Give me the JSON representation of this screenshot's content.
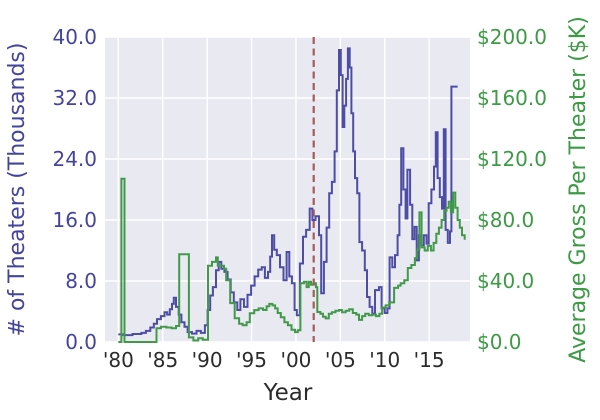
{
  "chart_data": {
    "type": "line",
    "subtype": "step-post-dual-axis",
    "title": "",
    "xlabel": "Year",
    "ylabel_left": "# of Theaters (Thousands)",
    "ylabel_right": "Average Gross Per Theater ($K)",
    "xlim": [
      1978.5,
      2019.6
    ],
    "ylim_left": [
      0,
      40
    ],
    "ylim_right": [
      0,
      200
    ],
    "grid": true,
    "legend": "none",
    "plot_bg": "#e9e9f2",
    "grid_color": "#ffffff",
    "x_ticks": [
      1980,
      1985,
      1990,
      1995,
      2000,
      2005,
      2010,
      2015
    ],
    "x_tick_labels": [
      "'80",
      "'85",
      "'90",
      "'95",
      "'00",
      "'05",
      "'10",
      "'15"
    ],
    "y_ticks_left": [
      0,
      8,
      16,
      24,
      32,
      40
    ],
    "y_tick_labels_left": [
      "0.0",
      "8.0",
      "16.0",
      "24.0",
      "32.0",
      "40.0"
    ],
    "y_ticks_right": [
      0,
      40,
      80,
      120,
      160,
      200
    ],
    "y_tick_labels_right": [
      "$0.0",
      "$40.0",
      "$80.0",
      "$120.0",
      "$160.0",
      "$200.0"
    ],
    "axis_text_color_left": "#44449f",
    "axis_text_color_right": "#3d9a45",
    "axis_text_color_x": "#2b2b2b",
    "event_line": {
      "x": 2002.0,
      "color": "#a65a5a",
      "style": "dashed"
    },
    "series": [
      {
        "name": "# of Theaters (Thousands)",
        "axis": "left",
        "color": "#4d4da5",
        "step": true,
        "points": [
          [
            1980.0,
            1.0
          ],
          [
            1980.6,
            0.9
          ],
          [
            1981.6,
            1.05
          ],
          [
            1982.6,
            1.2
          ],
          [
            1983.1,
            1.45
          ],
          [
            1983.6,
            1.9
          ],
          [
            1984.0,
            2.4
          ],
          [
            1984.35,
            3.0
          ],
          [
            1984.8,
            3.4
          ],
          [
            1985.2,
            3.9
          ],
          [
            1985.5,
            3.6
          ],
          [
            1985.8,
            4.3
          ],
          [
            1986.05,
            5.0
          ],
          [
            1986.25,
            5.8
          ],
          [
            1986.5,
            4.6
          ],
          [
            1986.8,
            3.6
          ],
          [
            1987.1,
            2.6
          ],
          [
            1987.45,
            2.0
          ],
          [
            1987.8,
            1.3
          ],
          [
            1988.3,
            1.1
          ],
          [
            1988.8,
            1.45
          ],
          [
            1989.3,
            1.2
          ],
          [
            1989.75,
            2.2
          ],
          [
            1990.05,
            4.2
          ],
          [
            1990.35,
            6.1
          ],
          [
            1990.65,
            7.2
          ],
          [
            1991.0,
            9.4
          ],
          [
            1991.3,
            10.5
          ],
          [
            1991.6,
            9.6
          ],
          [
            1991.95,
            9.2
          ],
          [
            1992.3,
            8.2
          ],
          [
            1992.65,
            6.5
          ],
          [
            1993.0,
            5.2
          ],
          [
            1993.4,
            4.2
          ],
          [
            1993.75,
            5.6
          ],
          [
            1994.15,
            4.6
          ],
          [
            1994.55,
            6.2
          ],
          [
            1994.95,
            7.4
          ],
          [
            1995.35,
            8.6
          ],
          [
            1995.75,
            9.5
          ],
          [
            1996.15,
            9.8
          ],
          [
            1996.5,
            8.4
          ],
          [
            1996.85,
            9.2
          ],
          [
            1997.1,
            11.2
          ],
          [
            1997.3,
            14.0
          ],
          [
            1997.55,
            12.1
          ],
          [
            1997.85,
            11.4
          ],
          [
            1998.2,
            9.8
          ],
          [
            1998.6,
            8.1
          ],
          [
            1998.95,
            11.8
          ],
          [
            1999.25,
            8.6
          ],
          [
            1999.55,
            7.7
          ],
          [
            1999.85,
            4.2
          ],
          [
            2000.1,
            3.5
          ],
          [
            2000.45,
            10.3
          ],
          [
            2000.8,
            13.8
          ],
          [
            2001.15,
            14.7
          ],
          [
            2001.55,
            17.5
          ],
          [
            2001.85,
            16.0
          ],
          [
            2002.2,
            16.5
          ],
          [
            2002.6,
            14.0
          ],
          [
            2002.85,
            6.4
          ],
          [
            2003.15,
            10.5
          ],
          [
            2003.45,
            15.0
          ],
          [
            2003.75,
            19.5
          ],
          [
            2004.05,
            21.0
          ],
          [
            2004.35,
            25.0
          ],
          [
            2004.6,
            33.0
          ],
          [
            2004.85,
            38.3
          ],
          [
            2005.05,
            35.0
          ],
          [
            2005.25,
            28.2
          ],
          [
            2005.45,
            31.0
          ],
          [
            2005.65,
            34.5
          ],
          [
            2005.85,
            38.5
          ],
          [
            2006.05,
            36.0
          ],
          [
            2006.25,
            30.0
          ],
          [
            2006.45,
            25.0
          ],
          [
            2006.65,
            21.5
          ],
          [
            2006.9,
            19.5
          ],
          [
            2007.15,
            13.1
          ],
          [
            2007.45,
            12.0
          ],
          [
            2007.75,
            9.4
          ],
          [
            2008.0,
            5.9
          ],
          [
            2008.3,
            4.6
          ],
          [
            2008.6,
            3.7
          ],
          [
            2008.9,
            6.8
          ],
          [
            2009.35,
            7.2
          ],
          [
            2009.65,
            4.4
          ],
          [
            2010.0,
            3.8
          ],
          [
            2010.3,
            4.4
          ],
          [
            2010.55,
            11.1
          ],
          [
            2010.85,
            9.8
          ],
          [
            2011.15,
            11.4
          ],
          [
            2011.45,
            14.0
          ],
          [
            2011.65,
            18.0
          ],
          [
            2011.85,
            25.4
          ],
          [
            2012.1,
            20.0
          ],
          [
            2012.35,
            16.2
          ],
          [
            2012.55,
            22.6
          ],
          [
            2012.85,
            18.0
          ],
          [
            2013.1,
            13.5
          ],
          [
            2013.35,
            15.1
          ],
          [
            2013.6,
            10.7
          ],
          [
            2013.85,
            14.0
          ],
          [
            2014.1,
            12.7
          ],
          [
            2014.4,
            14.0
          ],
          [
            2014.7,
            12.9
          ],
          [
            2014.95,
            18.2
          ],
          [
            2015.25,
            20.0
          ],
          [
            2015.55,
            23.0
          ],
          [
            2015.75,
            27.5
          ],
          [
            2015.95,
            21.5
          ],
          [
            2016.2,
            19.0
          ],
          [
            2016.45,
            17.5
          ],
          [
            2016.65,
            27.9
          ],
          [
            2016.85,
            14.7
          ],
          [
            2017.1,
            13.0
          ],
          [
            2017.35,
            14.5
          ],
          [
            2017.5,
            33.5
          ],
          [
            2018.2,
            33.5
          ]
        ]
      },
      {
        "name": "Average Gross Per Theater ($K)",
        "axis": "right",
        "color": "#42994a",
        "step": true,
        "points": [
          [
            1980.0,
            0
          ],
          [
            1980.35,
            107
          ],
          [
            1980.7,
            0
          ],
          [
            1984.3,
            9
          ],
          [
            1984.8,
            10
          ],
          [
            1985.4,
            9.5
          ],
          [
            1986.0,
            9
          ],
          [
            1986.5,
            10.5
          ],
          [
            1986.85,
            57.5
          ],
          [
            1987.95,
            3
          ],
          [
            1988.45,
            1
          ],
          [
            1989.0,
            2.5
          ],
          [
            1989.5,
            1.5
          ],
          [
            1990.1,
            50
          ],
          [
            1990.55,
            52.5
          ],
          [
            1991.0,
            55.5
          ],
          [
            1991.2,
            50
          ],
          [
            1991.9,
            48
          ],
          [
            1992.15,
            40.5
          ],
          [
            1992.6,
            25.5
          ],
          [
            1993.1,
            15.6
          ],
          [
            1993.6,
            12
          ],
          [
            1994.0,
            11
          ],
          [
            1994.45,
            13
          ],
          [
            1994.8,
            18.9
          ],
          [
            1995.3,
            20.9
          ],
          [
            1995.8,
            22
          ],
          [
            1996.3,
            21
          ],
          [
            1996.7,
            23.5
          ],
          [
            1997.0,
            25
          ],
          [
            1997.35,
            24
          ],
          [
            1997.65,
            22
          ],
          [
            1997.95,
            19
          ],
          [
            1998.3,
            16.2
          ],
          [
            1998.7,
            13
          ],
          [
            1999.1,
            11
          ],
          [
            1999.5,
            8
          ],
          [
            1999.9,
            6.5
          ],
          [
            2000.2,
            7.7
          ],
          [
            2000.5,
            38.5
          ],
          [
            2000.9,
            39.5
          ],
          [
            2001.2,
            36
          ],
          [
            2001.45,
            39.5
          ],
          [
            2001.7,
            37.5
          ],
          [
            2001.95,
            38.5
          ],
          [
            2002.25,
            36
          ],
          [
            2002.4,
            19.7
          ],
          [
            2002.75,
            18.5
          ],
          [
            2003.05,
            16.5
          ],
          [
            2003.35,
            15.5
          ],
          [
            2003.7,
            18.5
          ],
          [
            2004.05,
            19.5
          ],
          [
            2004.45,
            20.5
          ],
          [
            2004.85,
            21
          ],
          [
            2005.2,
            19.5
          ],
          [
            2005.6,
            20.5
          ],
          [
            2006.0,
            21.5
          ],
          [
            2006.4,
            19
          ],
          [
            2006.8,
            18
          ],
          [
            2007.1,
            14.5
          ],
          [
            2007.45,
            17
          ],
          [
            2007.8,
            18.5
          ],
          [
            2008.2,
            17.5
          ],
          [
            2008.6,
            18
          ],
          [
            2009.0,
            17
          ],
          [
            2009.4,
            18.5
          ],
          [
            2009.7,
            22.6
          ],
          [
            2010.1,
            24
          ],
          [
            2010.5,
            26
          ],
          [
            2011.05,
            35.5
          ],
          [
            2011.5,
            37
          ],
          [
            2011.8,
            38.5
          ],
          [
            2012.2,
            40.5
          ],
          [
            2012.6,
            48.5
          ],
          [
            2013.0,
            50.5
          ],
          [
            2013.4,
            55
          ],
          [
            2013.65,
            60.5
          ],
          [
            2013.9,
            85
          ],
          [
            2014.15,
            62
          ],
          [
            2014.5,
            60
          ],
          [
            2014.85,
            63
          ],
          [
            2015.2,
            60
          ],
          [
            2015.5,
            65
          ],
          [
            2015.8,
            71
          ],
          [
            2016.1,
            75
          ],
          [
            2016.4,
            80
          ],
          [
            2016.7,
            86
          ],
          [
            2016.95,
            88
          ],
          [
            2017.2,
            92
          ],
          [
            2017.45,
            85
          ],
          [
            2017.7,
            98
          ],
          [
            2017.95,
            88
          ],
          [
            2018.2,
            80
          ],
          [
            2018.45,
            75
          ],
          [
            2018.7,
            70
          ],
          [
            2019.0,
            67
          ]
        ]
      }
    ]
  }
}
